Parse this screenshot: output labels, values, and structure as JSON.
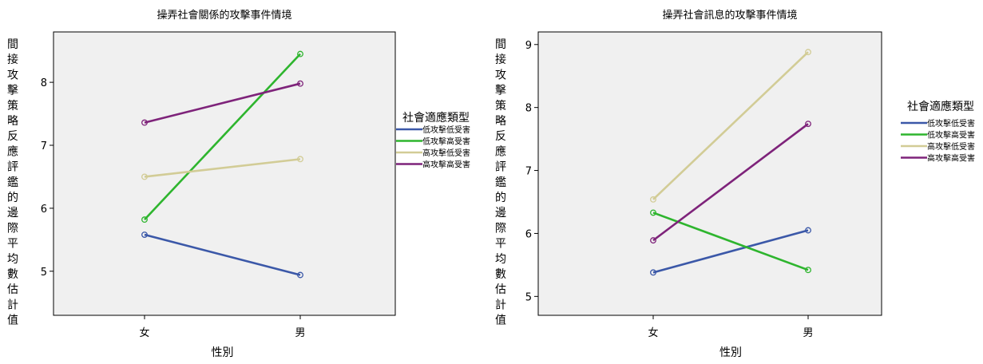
{
  "chart_data": [
    {
      "type": "line",
      "title": "操弄社會關係的攻擊事件情境",
      "xlabel": "性別",
      "ylabel": "間接攻擊策略反應評鑑的邊際平均數估計值",
      "categories": [
        "女",
        "男"
      ],
      "yticks": [
        5,
        6,
        7,
        8
      ],
      "ylim": [
        4.3,
        8.8
      ],
      "legend_title": "社會適應類型",
      "legend_position": "right",
      "grid": false,
      "series": [
        {
          "name": "低攻擊低受害",
          "values": [
            5.58,
            4.94
          ],
          "color": "#3b58a8"
        },
        {
          "name": "低攻擊高受害",
          "values": [
            5.82,
            8.45
          ],
          "color": "#2eb52e"
        },
        {
          "name": "高攻擊低受害",
          "values": [
            6.5,
            6.78
          ],
          "color": "#d2cc96"
        },
        {
          "name": "高攻擊高受害",
          "values": [
            7.36,
            7.98
          ],
          "color": "#7e237a"
        }
      ]
    },
    {
      "type": "line",
      "title": "操弄社會訊息的攻擊事件情境",
      "xlabel": "性別",
      "ylabel": "間接攻擊策略反應評鑑的邊際平均數估計值",
      "categories": [
        "女",
        "男"
      ],
      "yticks": [
        5,
        6,
        7,
        8,
        9
      ],
      "ylim": [
        4.7,
        9.2
      ],
      "legend_title": "社會適應類型",
      "legend_position": "right",
      "grid": false,
      "series": [
        {
          "name": "低攻擊低受害",
          "values": [
            5.38,
            6.05
          ],
          "color": "#3b58a8"
        },
        {
          "name": "低攻擊高受害",
          "values": [
            6.33,
            5.42
          ],
          "color": "#2eb52e"
        },
        {
          "name": "高攻擊低受害",
          "values": [
            6.54,
            8.88
          ],
          "color": "#d2cc96"
        },
        {
          "name": "高攻擊高受害",
          "values": [
            5.89,
            7.74
          ],
          "color": "#7e237a"
        }
      ]
    }
  ]
}
